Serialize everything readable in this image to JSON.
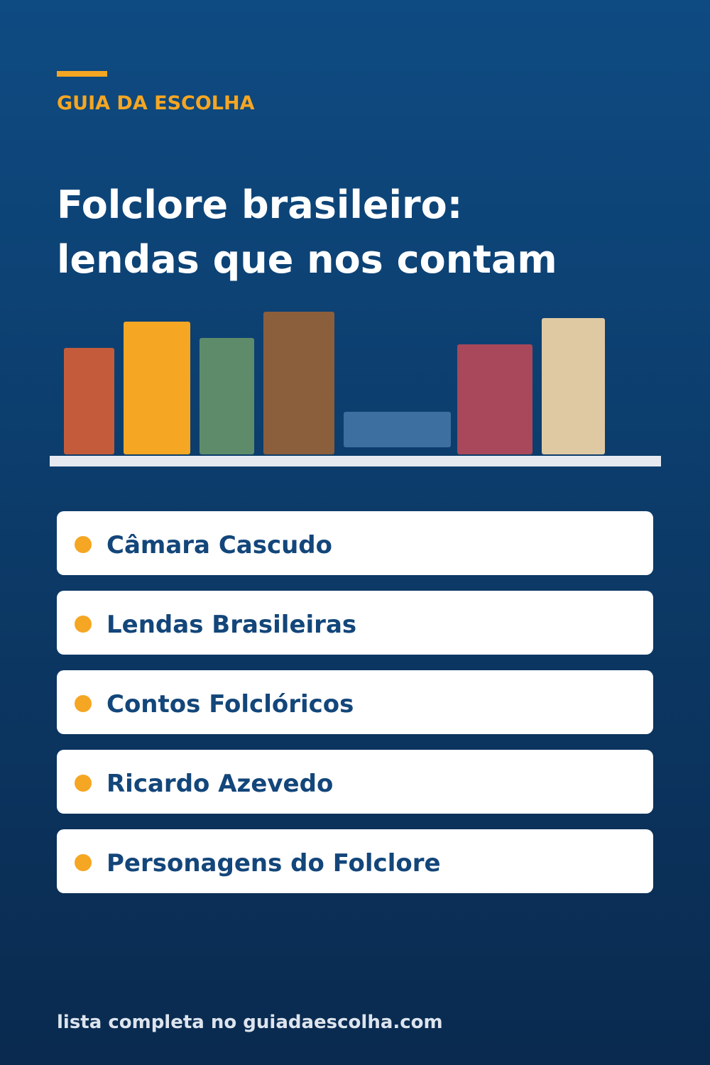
{
  "header": {
    "brand": "GUIA DA ESCOLHA",
    "title_lines": [
      "Folclore brasileiro:",
      "lendas que nos contam"
    ]
  },
  "items": [
    "Câmara Cascudo",
    "Lendas Brasileiras",
    "Contos Folclóricos",
    "Ricardo Azevedo",
    "Personagens do Folclore"
  ],
  "footer": "lista completa no guiadaescolha.com"
}
